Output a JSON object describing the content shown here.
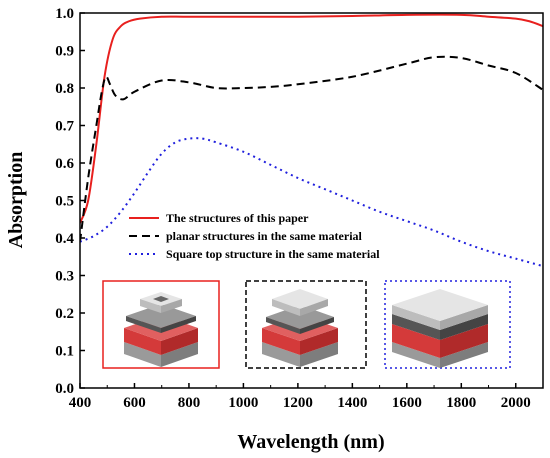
{
  "chart_data": {
    "type": "line",
    "title": "",
    "xlabel": "Wavelength (nm)",
    "ylabel": "Absorption",
    "xlim": [
      400,
      2100
    ],
    "ylim": [
      0.0,
      1.0
    ],
    "xticks": [
      400,
      600,
      800,
      1000,
      1200,
      1400,
      1600,
      1800,
      2000
    ],
    "yticks": [
      "0.0",
      "0.1",
      "0.2",
      "0.3",
      "0.4",
      "0.5",
      "0.6",
      "0.7",
      "0.8",
      "0.9",
      "1.0"
    ],
    "grid": false,
    "legend_position": "middle-left",
    "series": [
      {
        "name": "The structures of this paper",
        "color": "#e8201e",
        "dash": "solid",
        "x": [
          400,
          430,
          460,
          490,
          520,
          550,
          580,
          620,
          700,
          800,
          1000,
          1200,
          1400,
          1600,
          1800,
          1900,
          2000,
          2050,
          2100
        ],
        "y": [
          0.44,
          0.5,
          0.65,
          0.83,
          0.93,
          0.965,
          0.978,
          0.985,
          0.99,
          0.99,
          0.99,
          0.99,
          0.992,
          0.995,
          0.995,
          0.99,
          0.985,
          0.978,
          0.965
        ]
      },
      {
        "name": "planar structures in the same material",
        "color": "#000000",
        "dash": "dashed",
        "x": [
          400,
          430,
          460,
          480,
          495,
          510,
          530,
          560,
          600,
          700,
          800,
          900,
          1000,
          1100,
          1200,
          1400,
          1600,
          1700,
          1800,
          1900,
          2000,
          2100
        ],
        "y": [
          0.39,
          0.56,
          0.7,
          0.79,
          0.83,
          0.81,
          0.78,
          0.77,
          0.79,
          0.82,
          0.815,
          0.8,
          0.8,
          0.803,
          0.81,
          0.83,
          0.865,
          0.882,
          0.88,
          0.86,
          0.84,
          0.795
        ]
      },
      {
        "name": "Square top structure in the same material",
        "color": "#2020dd",
        "dash": "dotted",
        "x": [
          400,
          450,
          500,
          550,
          600,
          650,
          700,
          750,
          800,
          850,
          900,
          1000,
          1100,
          1200,
          1300,
          1400,
          1500,
          1600,
          1700,
          1800,
          1900,
          2000,
          2100
        ],
        "y": [
          0.39,
          0.405,
          0.43,
          0.47,
          0.52,
          0.575,
          0.625,
          0.655,
          0.665,
          0.665,
          0.655,
          0.63,
          0.595,
          0.56,
          0.53,
          0.5,
          0.47,
          0.445,
          0.42,
          0.39,
          0.365,
          0.345,
          0.325
        ]
      }
    ]
  }
}
